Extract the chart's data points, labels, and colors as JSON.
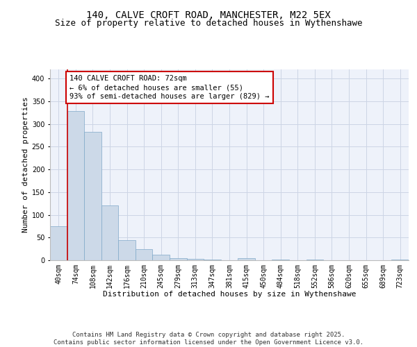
{
  "title1": "140, CALVE CROFT ROAD, MANCHESTER, M22 5EX",
  "title2": "Size of property relative to detached houses in Wythenshawe",
  "xlabel": "Distribution of detached houses by size in Wythenshawe",
  "ylabel": "Number of detached properties",
  "categories": [
    "40sqm",
    "74sqm",
    "108sqm",
    "142sqm",
    "176sqm",
    "210sqm",
    "245sqm",
    "279sqm",
    "313sqm",
    "347sqm",
    "381sqm",
    "415sqm",
    "450sqm",
    "484sqm",
    "518sqm",
    "552sqm",
    "586sqm",
    "620sqm",
    "655sqm",
    "689sqm",
    "723sqm"
  ],
  "values": [
    75,
    328,
    283,
    120,
    44,
    24,
    12,
    5,
    3,
    1,
    0,
    5,
    0,
    2,
    0,
    2,
    0,
    0,
    0,
    0,
    2
  ],
  "bar_color": "#ccd9e8",
  "bar_edge_color": "#7fa8c8",
  "annotation_box_text": "140 CALVE CROFT ROAD: 72sqm\n← 6% of detached houses are smaller (55)\n93% of semi-detached houses are larger (829) →",
  "annotation_box_color": "#cc0000",
  "vline_bar_index": 1,
  "vline_color": "#cc0000",
  "ylim": [
    0,
    420
  ],
  "yticks": [
    0,
    50,
    100,
    150,
    200,
    250,
    300,
    350,
    400
  ],
  "grid_color": "#ccd5e5",
  "background_color": "#eef2fa",
  "footer_text": "Contains HM Land Registry data © Crown copyright and database right 2025.\nContains public sector information licensed under the Open Government Licence v3.0.",
  "title_fontsize": 10,
  "subtitle_fontsize": 9,
  "axis_label_fontsize": 8,
  "tick_fontsize": 7,
  "annotation_fontsize": 7.5,
  "footer_fontsize": 6.5
}
